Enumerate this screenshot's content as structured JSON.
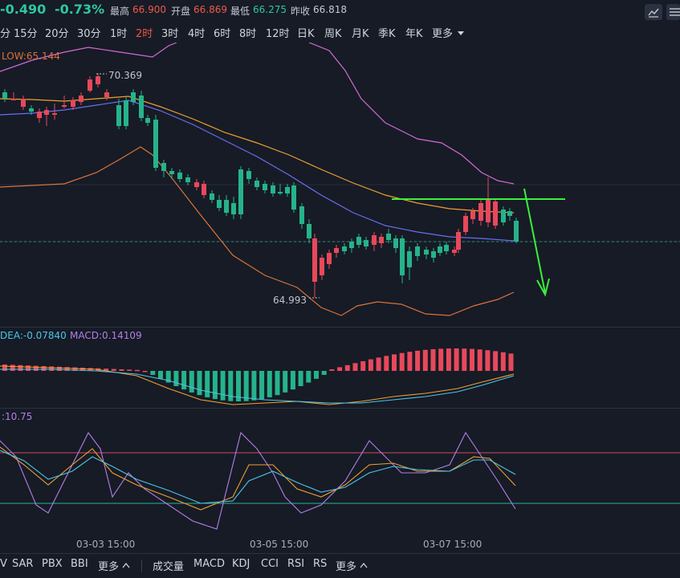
{
  "header": {
    "change": "-0.490",
    "change_pct": "-0.73%",
    "high_label": "最高",
    "high": "66.900",
    "open_label": "开盘",
    "open": "66.869",
    "low_label": "最低",
    "low": "66.275",
    "prev_label": "昨收",
    "prev": "66.818"
  },
  "intervals": [
    "分",
    "15分",
    "20分",
    "30分",
    "1时",
    "2时",
    "3时",
    "4时",
    "6时",
    "8时",
    "12时",
    "日K",
    "周K",
    "月K",
    "季K",
    "年K",
    "更多"
  ],
  "active_interval": "2时",
  "legends": {
    "main": "LOW:65.144",
    "macd_dea": "DEA:-0.07840",
    "macd_macd": "MACD:0.14109",
    "kdj": ":10.75"
  },
  "price_labels": {
    "high": "70.369",
    "low": "64.993"
  },
  "x_labels": [
    "03-03 15:00",
    "03-05 15:00",
    "03-07 15:00"
  ],
  "bottom": {
    "left": [
      "V",
      "SAR",
      "PBX",
      "BBI",
      "更多"
    ],
    "right": [
      "成交量",
      "MACD",
      "KDJ",
      "CCI",
      "RSI",
      "RS",
      "更多"
    ]
  },
  "colors": {
    "up": "#e8485b",
    "down": "#26b38a",
    "annotation": "#3bf03b",
    "boll_upper": "#d46ad4",
    "boll_mid": "#f0a030",
    "ma": "#6a6ef0",
    "boll_lower": "#d8733a",
    "bg": "#161b26"
  },
  "icons": [
    "draw-tool-icon",
    "settings-icon"
  ]
}
